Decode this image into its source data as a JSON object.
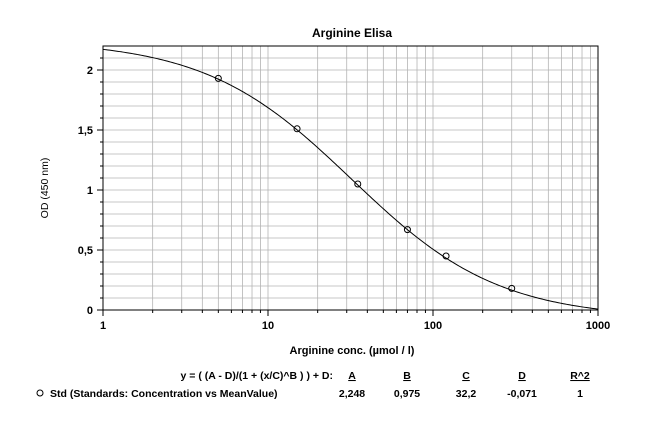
{
  "chart_data": {
    "type": "scatter",
    "title": "Arginine Elisa",
    "xlabel": "Arginine conc. (µmol / l)",
    "ylabel": "OD (450 nm)",
    "x_scale": "log",
    "xlim": [
      1,
      1000
    ],
    "ylim": [
      0,
      2.2
    ],
    "x_ticks": [
      {
        "value": 1,
        "label": "1"
      },
      {
        "value": 10,
        "label": "10"
      },
      {
        "value": 100,
        "label": "100"
      },
      {
        "value": 1000,
        "label": "1000"
      }
    ],
    "y_ticks": [
      {
        "value": 0,
        "label": "0"
      },
      {
        "value": 0.5,
        "label": "0,5"
      },
      {
        "value": 1,
        "label": "1"
      },
      {
        "value": 1.5,
        "label": "1,5"
      },
      {
        "value": 2,
        "label": "2"
      }
    ],
    "grid": true,
    "series": [
      {
        "name": "Std (Standards: Concentration vs MeanValue)",
        "marker": "open-circle",
        "points": [
          {
            "x": 5,
            "y": 1.93
          },
          {
            "x": 15,
            "y": 1.51
          },
          {
            "x": 35,
            "y": 1.05
          },
          {
            "x": 70,
            "y": 0.67
          },
          {
            "x": 120,
            "y": 0.45
          },
          {
            "x": 300,
            "y": 0.18
          }
        ]
      }
    ],
    "fit": {
      "equation": "y = ( (A - D)/(1 + (x/C)^B ) ) + D:",
      "headers": [
        "A",
        "B",
        "C",
        "D",
        "R^2"
      ],
      "values": [
        "2,248",
        "0,975",
        "32,2",
        "-0,071",
        "1"
      ],
      "params": {
        "A": 2.248,
        "B": 0.975,
        "C": 32.2,
        "D": -0.071
      }
    },
    "colors": {
      "line": "#000000",
      "grid": "#b4b4b4",
      "axis": "#000000"
    }
  }
}
